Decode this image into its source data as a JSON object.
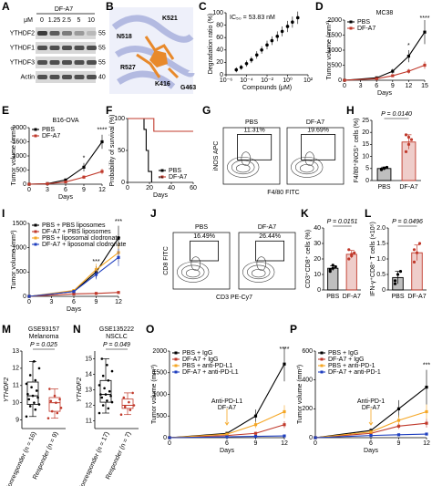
{
  "figure": {
    "letters": [
      "A",
      "B",
      "C",
      "D",
      "E",
      "F",
      "G",
      "H",
      "I",
      "J",
      "K",
      "L",
      "M",
      "N",
      "O",
      "P"
    ],
    "blot": {
      "title": "DF-A7",
      "unit": "μM",
      "doses": [
        "0",
        "1.25",
        "2.5",
        "5",
        "10"
      ],
      "rows": [
        "YTHDF2",
        "YTHDF1",
        "YTHDF3",
        "Actin"
      ],
      "mw": [
        "55",
        "55",
        "55",
        "40"
      ]
    },
    "structure": {
      "residues": [
        "K521",
        "N518",
        "R527",
        "K416",
        "G463"
      ]
    },
    "flow_g": {
      "panels": [
        {
          "title": "PBS",
          "gate": "11.31%"
        },
        {
          "title": "DF-A7",
          "gate": "19.69%"
        }
      ],
      "ylabel": "iNOS APC",
      "xlabel": "F4/80 FITC"
    },
    "flow_j": {
      "panels": [
        {
          "title": "PBS",
          "gate": "16.49%"
        },
        {
          "title": "DF-A7",
          "gate": "26.44%"
        }
      ],
      "ylabel": "CD8 FITC",
      "xlabel": "CD3 PE-Cy7"
    }
  },
  "chart_data": [
    {
      "type": "scatter",
      "annotation": "IC₅₀ = 53.83 nM",
      "xlabel": "Compounds (μM)",
      "ylabel": "Degradation ratio (%)",
      "xlog": true,
      "x": [
        1e-05,
        3e-05,
        0.0001,
        0.0003,
        0.001,
        0.003,
        0.01,
        0.03,
        0.1,
        0.3,
        1,
        3,
        10
      ],
      "values": [
        8,
        12,
        18,
        24,
        32,
        40,
        48,
        55,
        62,
        70,
        78,
        85,
        92
      ],
      "errors": [
        4,
        4,
        5,
        5,
        6,
        6,
        7,
        7,
        8,
        8,
        9,
        9,
        10
      ],
      "color": "#000000",
      "xlim": [
        1e-06,
        100
      ],
      "xticks": [
        {
          "value": 1e-06,
          "label": "10⁻⁶"
        },
        {
          "value": 0.0001,
          "label": "10⁻⁴"
        },
        {
          "value": 0.01,
          "label": "10⁻²"
        },
        {
          "value": 1,
          "label": "10⁰"
        },
        {
          "value": 100,
          "label": "10²"
        }
      ],
      "ylim": [
        0,
        100
      ],
      "yticks": [
        0,
        20,
        40,
        60,
        80,
        100
      ]
    },
    {
      "type": "line",
      "title": "MC38",
      "xlabel": "Days",
      "ylabel": "Tumor volume (mm³)",
      "x": [
        0,
        6,
        9,
        12,
        15
      ],
      "series": [
        {
          "name": "PBS",
          "color": "#000000",
          "values": [
            0,
            80,
            300,
            800,
            1600
          ],
          "errors": [
            0,
            20,
            80,
            200,
            400
          ]
        },
        {
          "name": "DF-A7",
          "color": "#c0392b",
          "values": [
            0,
            50,
            150,
            300,
            500
          ],
          "errors": [
            0,
            15,
            40,
            80,
            120
          ]
        }
      ],
      "annotations": [
        "****",
        "*"
      ],
      "legend": "upper left",
      "xlim": [
        0,
        15
      ],
      "xticks": [
        0,
        3,
        6,
        9,
        12,
        15
      ],
      "ylim": [
        0,
        2000
      ],
      "yticks": [
        0,
        500,
        1000,
        1500,
        2000
      ]
    },
    {
      "type": "line",
      "title": "B16-OVA",
      "xlabel": "Days",
      "ylabel": "Tumor volume (mm³)",
      "x": [
        0,
        3,
        6,
        9,
        12
      ],
      "series": [
        {
          "name": "PBS",
          "color": "#000000",
          "values": [
            0,
            20,
            150,
            600,
            1500
          ],
          "errors": [
            0,
            10,
            40,
            150,
            250
          ]
        },
        {
          "name": "DF-A7",
          "color": "#c0392b",
          "values": [
            0,
            15,
            80,
            250,
            450
          ],
          "errors": [
            0,
            8,
            20,
            60,
            100
          ]
        }
      ],
      "annotations": [
        "****",
        "*"
      ],
      "legend": "upper left",
      "xlim": [
        0,
        12
      ],
      "xticks": [
        0,
        3,
        6,
        9,
        12
      ],
      "ylim": [
        0,
        2000
      ],
      "yticks": [
        0,
        500,
        1000,
        1500,
        2000
      ]
    },
    {
      "type": "line",
      "xlabel": "Days",
      "ylabel": "Probability of survival (%)",
      "series": [
        {
          "name": "PBS",
          "color": "#000000",
          "x": [
            0,
            15,
            15,
            17,
            17,
            19,
            19,
            22,
            22
          ],
          "values": [
            100,
            100,
            83,
            83,
            50,
            50,
            17,
            17,
            0
          ]
        },
        {
          "name": "DF-A7",
          "color": "#c0392b",
          "x": [
            0,
            24,
            24,
            60
          ],
          "values": [
            100,
            100,
            80,
            80
          ]
        }
      ],
      "annotations": [
        "**"
      ],
      "legend": "lower right",
      "xlim": [
        0,
        60
      ],
      "xticks": [
        0,
        20,
        40,
        60
      ],
      "ylim": [
        0,
        100
      ],
      "yticks": [
        0,
        50,
        100
      ]
    },
    {
      "type": "bar",
      "ylabel": "F4/80⁺iNOS⁺ cells (%)",
      "pvalue": "P = 0.0140",
      "categories": [
        "PBS",
        "DF-A7"
      ],
      "values": [
        5,
        16
      ],
      "errors": [
        0.6,
        3
      ],
      "points": [
        [
          4.5,
          5,
          5.5,
          4.8,
          5.2
        ],
        [
          12,
          15,
          17,
          19,
          18
        ]
      ],
      "colors": [
        "#000000",
        "#c0392b"
      ],
      "ylim": [
        0,
        25
      ],
      "yticks": [
        0,
        5,
        10,
        15,
        20,
        25
      ]
    },
    {
      "type": "line",
      "xlabel": "Days",
      "ylabel": "Tumor volume (mm³)",
      "x": [
        0,
        6,
        9,
        12
      ],
      "series": [
        {
          "name": "PBS + PBS liposomes",
          "color": "#000000",
          "values": [
            0,
            100,
            500,
            1200
          ],
          "errors": [
            0,
            30,
            120,
            250
          ]
        },
        {
          "name": "DF-A7 + PBS liposomes",
          "color": "#c0392b",
          "values": [
            0,
            50,
            60,
            80
          ],
          "errors": [
            0,
            15,
            20,
            25
          ]
        },
        {
          "name": "PBS + liposomal clodronate",
          "color": "#f5a623",
          "values": [
            0,
            120,
            550,
            900
          ],
          "errors": [
            0,
            30,
            120,
            200
          ]
        },
        {
          "name": "DF-A7 + liposomal clodronate",
          "color": "#1f3fbf",
          "values": [
            0,
            100,
            450,
            800
          ],
          "errors": [
            0,
            25,
            100,
            180
          ]
        }
      ],
      "annotations": [
        "***",
        "***"
      ],
      "legend": "upper left",
      "xlim": [
        0,
        12
      ],
      "xticks": [
        0,
        3,
        6,
        9,
        12
      ],
      "ylim": [
        0,
        1500
      ],
      "yticks": [
        0,
        500,
        1000,
        1500
      ]
    },
    {
      "type": "bar",
      "ylabel": "CD3⁺CD8⁺ cells (%)",
      "pvalue": "P = 0.0151",
      "categories": [
        "PBS",
        "DF-A7"
      ],
      "values": [
        14,
        23
      ],
      "errors": [
        1.5,
        2.5
      ],
      "points": [
        [
          12,
          14,
          15,
          13,
          16
        ],
        [
          20,
          22,
          24,
          26,
          23
        ]
      ],
      "colors": [
        "#000000",
        "#c0392b"
      ],
      "ylim": [
        0,
        40
      ],
      "yticks": [
        0,
        10,
        20,
        30,
        40
      ]
    },
    {
      "type": "bar",
      "ylabel": "IFN-γ⁺CD8⁺ T cells (×10⁵)",
      "pvalue": "P = 0.0496",
      "categories": [
        "PBS",
        "DF-A7"
      ],
      "values": [
        0.4,
        1.2
      ],
      "errors": [
        0.2,
        0.25
      ],
      "points": [
        [
          0.2,
          0.5,
          0.6,
          0.3
        ],
        [
          0.9,
          1.2,
          1.5,
          1.3
        ]
      ],
      "colors": [
        "#000000",
        "#c0392b"
      ],
      "ylim": [
        0,
        2
      ],
      "yticks": [
        0,
        0.5,
        {
          "value": 1,
          "label": "1.0"
        },
        1.5,
        {
          "value": 2,
          "label": "2.0"
        }
      ]
    },
    {
      "type": "box",
      "title": "GSE93157",
      "subtitle": "Melanoma",
      "ylabel": "YTHDF2",
      "pvalue": "P = 0.025",
      "categories": [
        "Nonresponder (n = 16)",
        "Responder (n = 9)"
      ],
      "boxes": [
        {
          "min": 9.2,
          "q1": 9.9,
          "median": 10.4,
          "q3": 11.2,
          "max": 12.4
        },
        {
          "min": 9.1,
          "q1": 9.5,
          "median": 10,
          "q3": 10.3,
          "max": 10.8
        }
      ],
      "points": [
        [
          9.2,
          9.6,
          9.8,
          9.9,
          10,
          10.2,
          10.3,
          10.4,
          10.5,
          10.7,
          10.9,
          11.1,
          11.3,
          11.6,
          12,
          12.4
        ],
        [
          9.1,
          9.4,
          9.5,
          9.7,
          10,
          10.1,
          10.2,
          10.4,
          10.8
        ]
      ],
      "colors": [
        "#000000",
        "#c0392b"
      ],
      "ylim": [
        8.5,
        13
      ],
      "yticks": [
        9,
        10,
        11,
        12,
        13
      ]
    },
    {
      "type": "box",
      "title": "GSE135222",
      "subtitle": "NSCLC",
      "ylabel": "YTHDF2",
      "pvalue": "P = 0.049",
      "categories": [
        "Nonresponder (n = 17)",
        "Responder (n = 7)"
      ],
      "boxes": [
        {
          "min": 11.5,
          "q1": 12.2,
          "median": 12.7,
          "q3": 13.6,
          "max": 15
        },
        {
          "min": 11.4,
          "q1": 11.8,
          "median": 12,
          "q3": 12.4,
          "max": 12.8
        }
      ],
      "points": [
        [
          11.5,
          11.8,
          12,
          12.2,
          12.3,
          12.5,
          12.6,
          12.7,
          12.7,
          12.9,
          13.1,
          13.3,
          13.6,
          13.9,
          14.2,
          14.6,
          15
        ],
        [
          11.4,
          11.7,
          11.9,
          12,
          12.2,
          12.5,
          12.8
        ]
      ],
      "colors": [
        "#000000",
        "#c0392b"
      ],
      "ylim": [
        10.5,
        15.5
      ],
      "yticks": [
        11,
        12,
        13,
        14,
        15
      ]
    },
    {
      "type": "line",
      "xlabel": "Days",
      "ylabel": "Tumor volume (mm³)",
      "x": [
        0,
        6,
        9,
        12
      ],
      "series": [
        {
          "name": "PBS + IgG",
          "color": "#000000",
          "values": [
            0,
            100,
            500,
            1700
          ],
          "errors": [
            0,
            30,
            150,
            400
          ]
        },
        {
          "name": "DF-A7 + IgG",
          "color": "#c0392b",
          "values": [
            0,
            50,
            100,
            300
          ],
          "errors": [
            0,
            15,
            30,
            80
          ]
        },
        {
          "name": "PBS + anti-PD-L1",
          "color": "#f5a623",
          "values": [
            0,
            80,
            300,
            600
          ],
          "errors": [
            0,
            20,
            80,
            150
          ]
        },
        {
          "name": "DF-A7 + anti-PD-L1",
          "color": "#1f3fbf",
          "values": [
            0,
            20,
            30,
            40
          ],
          "errors": [
            0,
            8,
            10,
            12
          ]
        }
      ],
      "treatments": [
        "Anti-PD-L1",
        "DF-A7"
      ],
      "treatment_colors": [
        "#f5a623",
        "#c0392b"
      ],
      "annotations": [
        "****"
      ],
      "legend": "upper left",
      "xlim": [
        0,
        12
      ],
      "xticks": [
        0,
        6,
        9,
        12
      ],
      "ylim": [
        0,
        2000
      ],
      "yticks": [
        0,
        500,
        1000,
        1500,
        2000
      ]
    },
    {
      "type": "line",
      "xlabel": "Days",
      "ylabel": "Tumor volume (mm³)",
      "x": [
        0,
        6,
        9,
        12
      ],
      "series": [
        {
          "name": "PBS + IgG",
          "color": "#000000",
          "values": [
            0,
            50,
            200,
            350
          ],
          "errors": [
            0,
            15,
            60,
            120
          ]
        },
        {
          "name": "DF-A7 + IgG",
          "color": "#c0392b",
          "values": [
            0,
            30,
            80,
            100
          ],
          "errors": [
            0,
            10,
            20,
            30
          ]
        },
        {
          "name": "PBS + anti-PD-1",
          "color": "#f5a623",
          "values": [
            0,
            40,
            120,
            180
          ],
          "errors": [
            0,
            12,
            35,
            50
          ]
        },
        {
          "name": "DF-A7 + anti-PD-1",
          "color": "#1f3fbf",
          "values": [
            0,
            15,
            20,
            25
          ],
          "errors": [
            0,
            5,
            6,
            8
          ]
        }
      ],
      "treatments": [
        "Anti-PD-1",
        "DF-A7"
      ],
      "treatment_colors": [
        "#f5a623",
        "#c0392b"
      ],
      "annotations": [
        "***"
      ],
      "legend": "upper left",
      "xlim": [
        0,
        12
      ],
      "xticks": [
        0,
        6,
        9,
        12
      ],
      "ylim": [
        0,
        600
      ],
      "yticks": [
        0,
        200,
        400,
        600
      ]
    }
  ]
}
